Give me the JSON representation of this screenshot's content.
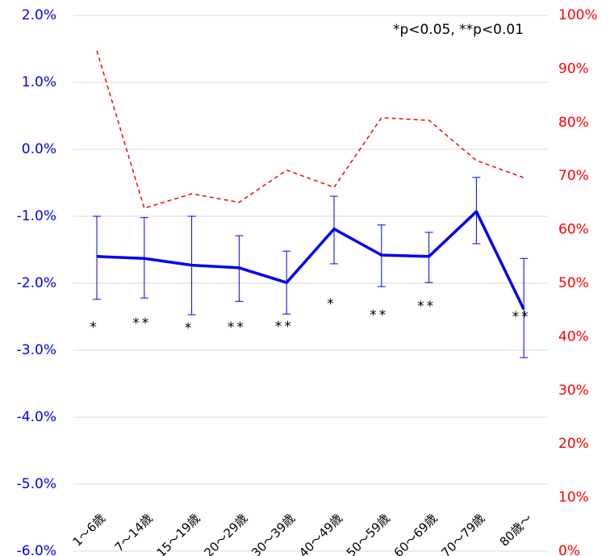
{
  "chart_data": {
    "type": "line",
    "annotation": "*p<0.05, **p<0.01",
    "categories": [
      "1～6歳",
      "7～14歳",
      "15～19歳",
      "20～29歳",
      "30～39歳",
      "40～49歳",
      "50～59歳",
      "60～69歳",
      "70～79歳",
      "80歳～"
    ],
    "series": [
      {
        "color": "#0000ee",
        "values": [
          -1.6,
          -1.63,
          -1.73,
          -1.77,
          -1.99,
          -1.19,
          -1.58,
          -1.6,
          -0.93,
          -2.39
        ],
        "upper": [
          -1.0,
          -1.02,
          -1.0,
          -1.29,
          -1.52,
          -0.7,
          -1.13,
          -1.24,
          -0.42,
          -1.63
        ],
        "lower": [
          -2.24,
          -2.22,
          -2.47,
          -2.27,
          -2.46,
          -1.71,
          -2.05,
          -1.99,
          -1.41,
          -3.11
        ],
        "significance": [
          "*",
          "**",
          "*",
          "**",
          "**",
          "*",
          "**",
          "**",
          null,
          "**"
        ]
      },
      {
        "color": "#ff0000",
        "axis": "y2",
        "dashed": true,
        "values": [
          93.4,
          64.0,
          66.7,
          65.1,
          71.1,
          67.9,
          80.9,
          80.4,
          72.9,
          69.7
        ]
      }
    ],
    "ylim": [
      -6,
      2
    ],
    "yticks": [
      {
        "value": -6,
        "label": "-6.0%"
      },
      {
        "value": -5,
        "label": "-5.0%"
      },
      {
        "value": -4,
        "label": "-4.0%"
      },
      {
        "value": -3,
        "label": "-3.0%"
      },
      {
        "value": -2,
        "label": "-2.0%"
      },
      {
        "value": -1,
        "label": "-1.0%"
      },
      {
        "value": 0,
        "label": "0.0%"
      },
      {
        "value": 1,
        "label": "1.0%"
      },
      {
        "value": 2,
        "label": "2.0%"
      }
    ],
    "y2lim": [
      0,
      100
    ],
    "y2ticks": [
      {
        "value": 0,
        "label": "0%"
      },
      {
        "value": 10,
        "label": "10%"
      },
      {
        "value": 20,
        "label": "20%"
      },
      {
        "value": 30,
        "label": "30%"
      },
      {
        "value": 40,
        "label": "40%"
      },
      {
        "value": 50,
        "label": "50%"
      },
      {
        "value": 60,
        "label": "60%"
      },
      {
        "value": 70,
        "label": "70%"
      },
      {
        "value": 80,
        "label": "80%"
      },
      {
        "value": 90,
        "label": "90%"
      },
      {
        "value": 100,
        "label": "100%"
      }
    ],
    "yaxis_color": "#0000ee",
    "y2axis_color": "#ff0000",
    "grid": true
  }
}
